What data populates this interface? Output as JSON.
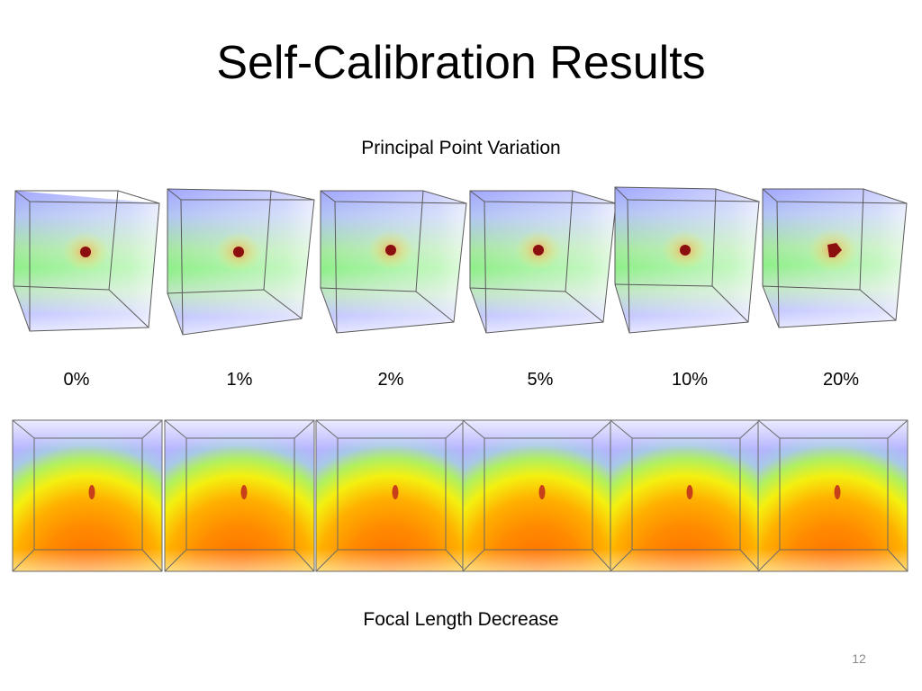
{
  "slide": {
    "title": "Self-Calibration Results",
    "top_caption": "Principal Point Variation",
    "bottom_caption": "Focal Length Decrease",
    "slide_number": "12"
  },
  "variation_labels": [
    "0%",
    "1%",
    "2%",
    "5%",
    "10%",
    "20%"
  ],
  "colors": {
    "volume_blue": "#a8a8ff",
    "volume_green": "#7af07a",
    "volume_orange": "#ff7a00",
    "volume_yellow": "#ffff30",
    "marker_red": "#8b0f0f",
    "marker_orange_red": "#c8401a",
    "cube_edge": "#5a5a5a",
    "slide_number_gray": "#8a8a8a"
  }
}
